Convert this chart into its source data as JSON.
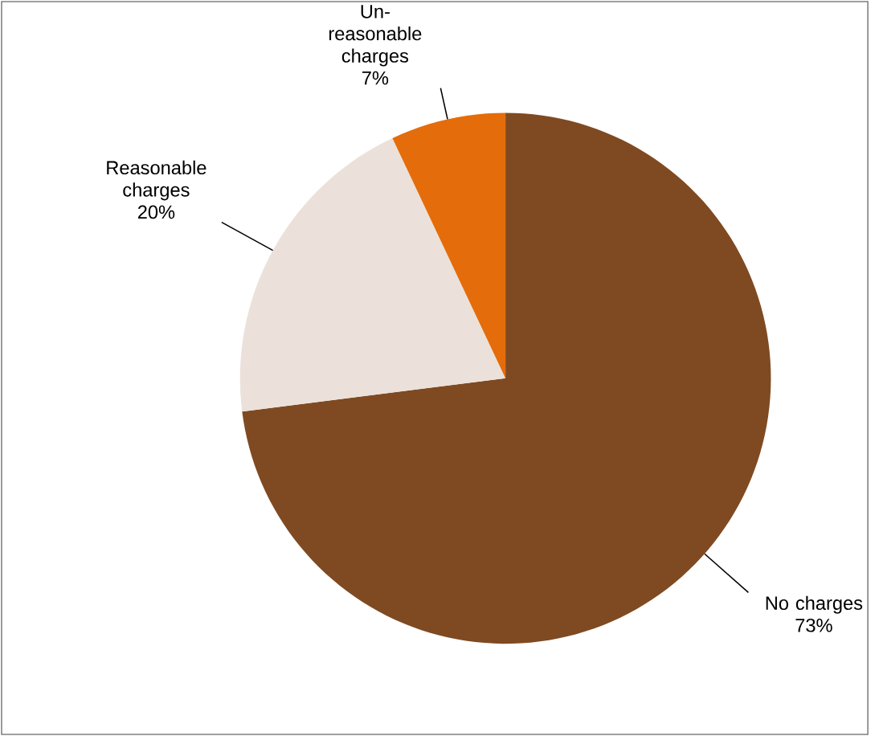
{
  "chart_data": {
    "type": "pie",
    "categories": [
      "No charges",
      "Reasonable charges",
      "Un-reasonable charges"
    ],
    "values": [
      73,
      20,
      7
    ],
    "value_labels": [
      "73%",
      "20%",
      "7%"
    ],
    "colors": [
      "#7f4a21",
      "#ebe1da",
      "#e46c0a"
    ]
  }
}
